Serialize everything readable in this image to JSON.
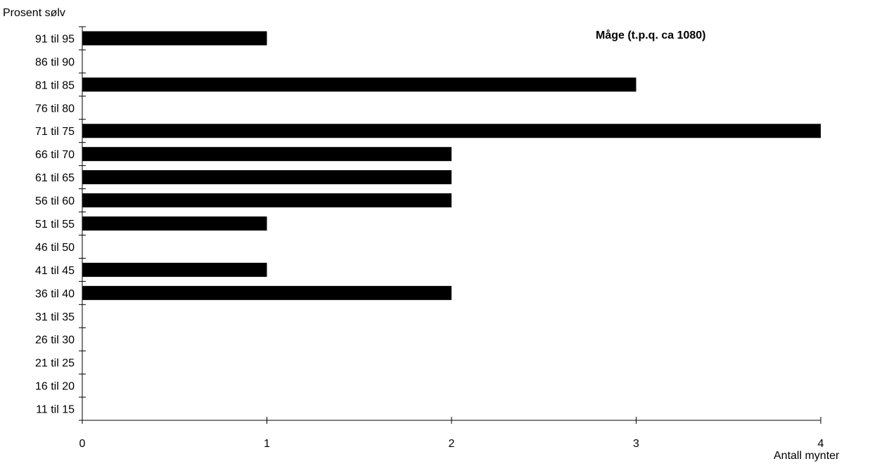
{
  "chart_data": {
    "type": "bar",
    "orientation": "horizontal",
    "title": "Måge (t.p.q. ca 1080)",
    "ylabel": "Prosent sølv",
    "xlabel": "Antall mynter",
    "categories": [
      "91 til 95",
      "86 til 90",
      "81 til 85",
      "76 til 80",
      "71 til 75",
      "66 til 70",
      "61 til 65",
      "56 til 60",
      "51 til 55",
      "46 til 50",
      "41 til 45",
      "36 til 40",
      "31 til 35",
      "26 til 30",
      "21 til 25",
      "16 til 20",
      "11 til 15"
    ],
    "values": [
      1,
      0,
      3,
      0,
      4,
      2,
      2,
      2,
      1,
      0,
      1,
      2,
      0,
      0,
      0,
      0,
      0
    ],
    "xlim": [
      0,
      4
    ],
    "xticks": [
      "0",
      "1",
      "2",
      "3",
      "4"
    ],
    "bar_color": "#000000",
    "grid": false,
    "legend": "none"
  }
}
